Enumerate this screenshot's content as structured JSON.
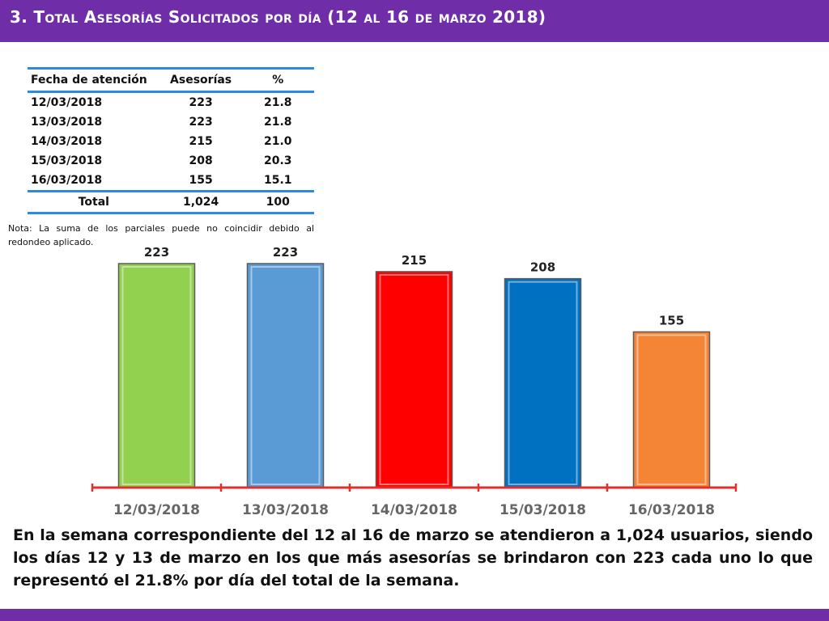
{
  "title": "3.  Total Asesorías Solicitados por día  (12 al 16 de marzo 2018)",
  "table": {
    "headers": [
      "Fecha de atención",
      "Asesorías",
      "%"
    ],
    "rows": [
      [
        "12/03/2018",
        "223",
        "21.8"
      ],
      [
        "13/03/2018",
        "223",
        "21.8"
      ],
      [
        "14/03/2018",
        "215",
        "21.0"
      ],
      [
        "15/03/2018",
        "208",
        "20.3"
      ],
      [
        "16/03/2018",
        "155",
        "15.1"
      ]
    ],
    "total": [
      "Total",
      "1,024",
      "100"
    ]
  },
  "note": "Nota: La suma de los parciales puede no coincidir debido al redondeo aplicado.",
  "chart_data": {
    "type": "bar",
    "categories": [
      "12/03/2018",
      "13/03/2018",
      "14/03/2018",
      "15/03/2018",
      "16/03/2018"
    ],
    "values": [
      223,
      223,
      215,
      208,
      155
    ],
    "data_labels": [
      "223",
      "223",
      "215",
      "208",
      "155"
    ],
    "colors": [
      "#92d050",
      "#5b9bd5",
      "#ff0000",
      "#0070c0",
      "#f58536"
    ],
    "axis_color": "#e0302c",
    "ylim": [
      0,
      223
    ],
    "grid": false,
    "legend": "none"
  },
  "summary": "En la semana correspondiente del 12 al 16 de marzo se atendieron a 1,024 usuarios, siendo los días 12 y 13 de marzo en los que más asesorías se brindaron con 223 cada uno lo que representó el 21.8% por día del total de la semana."
}
